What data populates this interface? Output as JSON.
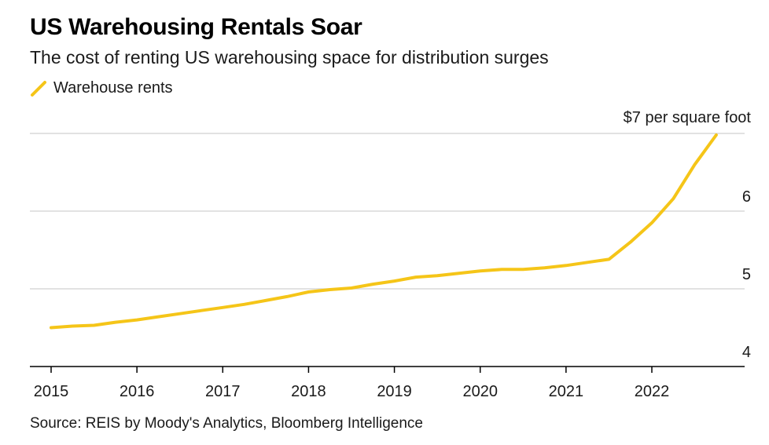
{
  "title": "US Warehousing Rentals Soar",
  "subtitle": "The cost of renting US warehousing space for distribution surges",
  "legend": {
    "label": "Warehouse rents"
  },
  "source": "Source: REIS by Moody's Analytics, Bloomberg Intelligence",
  "colors": {
    "series": "#f5c518",
    "grid": "#d9d9d9",
    "axis": "#000000",
    "text": "#1a1a1a"
  },
  "chart_data": {
    "type": "line",
    "title": "US Warehousing Rentals Soar",
    "xlabel": "",
    "ylabel": "$ per square foot",
    "ylim": [
      4,
      7
    ],
    "yticks": [
      {
        "value": 7,
        "label": "$7 per square foot"
      },
      {
        "value": 6,
        "label": "6"
      },
      {
        "value": 5,
        "label": "5"
      },
      {
        "value": 4,
        "label": "4"
      }
    ],
    "xticks": [
      {
        "value": 2015,
        "label": "2015"
      },
      {
        "value": 2016,
        "label": "2016"
      },
      {
        "value": 2017,
        "label": "2017"
      },
      {
        "value": 2018,
        "label": "2018"
      },
      {
        "value": 2019,
        "label": "2019"
      },
      {
        "value": 2020,
        "label": "2020"
      },
      {
        "value": 2021,
        "label": "2021"
      },
      {
        "value": 2022,
        "label": "2022"
      }
    ],
    "xlim": [
      2014.75,
      2023.0
    ],
    "series": [
      {
        "name": "Warehouse rents",
        "x": [
          2015.0,
          2015.25,
          2015.5,
          2015.75,
          2016.0,
          2016.25,
          2016.5,
          2016.75,
          2017.0,
          2017.25,
          2017.5,
          2017.75,
          2018.0,
          2018.25,
          2018.5,
          2018.75,
          2019.0,
          2019.25,
          2019.5,
          2019.75,
          2020.0,
          2020.25,
          2020.5,
          2020.75,
          2021.0,
          2021.25,
          2021.5,
          2021.75,
          2022.0,
          2022.25,
          2022.5,
          2022.75
        ],
        "values": [
          4.5,
          4.52,
          4.53,
          4.57,
          4.6,
          4.64,
          4.68,
          4.72,
          4.76,
          4.8,
          4.85,
          4.9,
          4.96,
          4.99,
          5.01,
          5.06,
          5.1,
          5.15,
          5.17,
          5.2,
          5.23,
          5.25,
          5.25,
          5.27,
          5.3,
          5.34,
          5.38,
          5.6,
          5.85,
          6.16,
          6.6,
          6.98
        ]
      }
    ]
  }
}
